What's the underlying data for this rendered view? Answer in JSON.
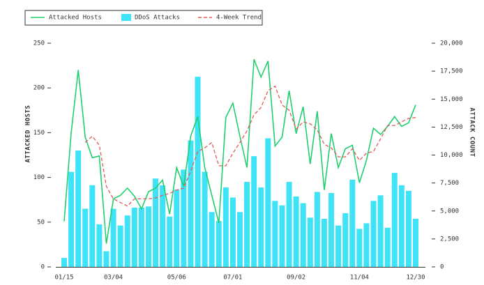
{
  "chart_data": {
    "type": "combo",
    "categories": [
      "01/15",
      null,
      null,
      null,
      null,
      null,
      null,
      "03/04",
      null,
      null,
      null,
      null,
      null,
      null,
      null,
      null,
      "05/06",
      null,
      null,
      null,
      null,
      null,
      null,
      null,
      "07/01",
      null,
      null,
      null,
      null,
      null,
      null,
      null,
      null,
      "09/02",
      null,
      null,
      null,
      null,
      null,
      null,
      null,
      null,
      "11/04",
      null,
      null,
      null,
      null,
      null,
      null,
      null,
      "12/30"
    ],
    "y_label": "ATTACKED HOSTS",
    "y2_label": "ATTACK COUNT",
    "ylim": [
      0,
      250
    ],
    "yticks": [
      0,
      50,
      100,
      150,
      200,
      250
    ],
    "y2lim": [
      0,
      20000
    ],
    "y2ticks": [
      0,
      {
        "value": 2500,
        "label": "2,500"
      },
      {
        "value": 5000,
        "label": "5,000"
      },
      {
        "value": 7500,
        "label": "7,500"
      },
      {
        "value": 10000,
        "label": "10,000"
      },
      {
        "value": 12500,
        "label": "12,500"
      },
      {
        "value": 15000,
        "label": "15,000"
      },
      {
        "value": 17500,
        "label": "17,500"
      },
      {
        "value": 20000,
        "label": "20,000"
      }
    ],
    "legend": "top-left",
    "series": [
      {
        "name": "Attacked Hosts",
        "type": "line",
        "color": "#1fcf6f",
        "values": [
          51,
          150,
          220,
          145,
          122,
          124,
          26,
          76,
          80,
          88,
          79,
          65,
          84,
          88,
          97,
          59,
          111,
          90,
          146,
          168,
          111,
          80,
          49,
          167,
          183,
          146,
          111,
          232,
          212,
          230,
          135,
          145,
          197,
          149,
          179,
          115,
          174,
          86,
          149,
          111,
          132,
          136,
          94,
          119,
          155,
          148,
          157,
          168,
          157,
          161,
          181
        ]
      },
      {
        "name": "DDoS Attacks",
        "type": "bar",
        "axis": "y2",
        "color": "#3ee3f7",
        "values": [
          800,
          8500,
          10400,
          5200,
          7300,
          3800,
          1400,
          5200,
          3700,
          4600,
          5300,
          5300,
          5400,
          7900,
          7300,
          4500,
          6900,
          8700,
          11300,
          17000,
          8500,
          4900,
          4100,
          7100,
          6200,
          4900,
          7600,
          9900,
          7100,
          11500,
          5900,
          5500,
          7600,
          6300,
          5700,
          4400,
          6700,
          4300,
          6600,
          3700,
          4800,
          7800,
          3400,
          3900,
          5900,
          6400,
          3500,
          8400,
          7300,
          6800,
          4300
        ]
      },
      {
        "name": "4-Week Trend",
        "type": "line",
        "dashed": true,
        "color": "#e25a5a",
        "values": [
          null,
          null,
          null,
          139,
          146,
          136,
          90,
          76,
          72,
          68,
          76,
          76,
          76,
          77,
          80,
          82,
          86,
          88,
          107,
          129,
          133,
          139,
          113,
          113,
          127,
          139,
          152,
          170,
          178,
          197,
          202,
          181,
          175,
          154,
          162,
          160,
          153,
          137,
          133,
          123,
          123,
          132,
          119,
          127,
          129,
          143,
          158,
          158,
          162,
          166,
          167
        ]
      }
    ]
  }
}
